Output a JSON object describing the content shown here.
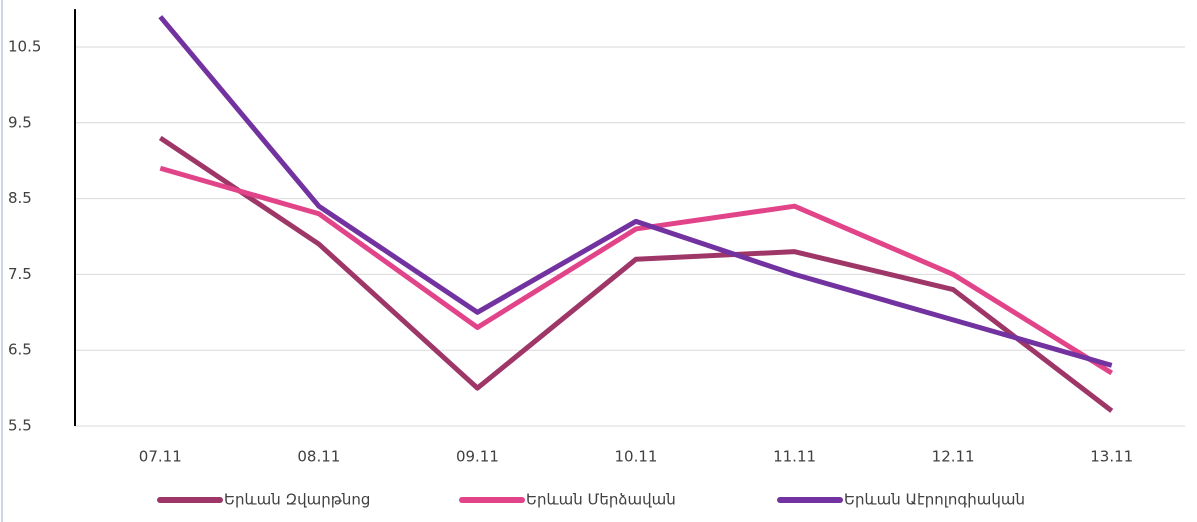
{
  "chart_data": {
    "type": "line",
    "categories": [
      "07.11",
      "08.11",
      "09.11",
      "10.11",
      "11.11",
      "12.11",
      "13.11"
    ],
    "series": [
      {
        "name": "Երևան Զվարթնոց",
        "color": "#9e3768",
        "values": [
          9.3,
          7.9,
          6.0,
          7.7,
          7.8,
          7.3,
          5.7
        ]
      },
      {
        "name": "Երևան Մերձավան",
        "color": "#e2448a",
        "values": [
          8.9,
          8.3,
          6.8,
          8.1,
          8.4,
          7.5,
          6.2
        ]
      },
      {
        "name": "Երևան Աէրոլոգիական",
        "color": "#7232a0",
        "values": [
          10.9,
          8.4,
          7.0,
          8.2,
          7.5,
          6.9,
          6.3
        ]
      }
    ],
    "ylim": [
      5.5,
      11
    ],
    "yticks": [
      5.5,
      6.5,
      7.5,
      8.5,
      9.5,
      10.5
    ],
    "grid": true,
    "legend": "bottom"
  }
}
